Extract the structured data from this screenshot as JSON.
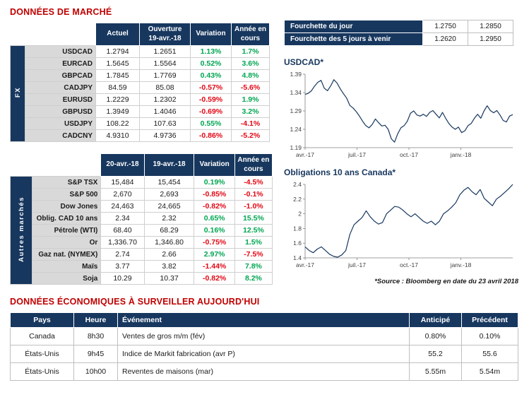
{
  "titles": {
    "market": "DONNÉES DE MARCHÉ",
    "econ": "DONNÉES ÉCONOMIQUES À SURVEILLER AUJOURD'HUI",
    "source_note": "*Source : Bloomberg en date du  23 avril 2018"
  },
  "colors": {
    "navy_header": "#17375E",
    "section_title_red": "#C00000",
    "positive_green": "#00A651",
    "negative_red": "#E30613",
    "row_label_gray": "#D9D9D9",
    "chart_line": "#17375E"
  },
  "range_table": {
    "rows": [
      {
        "label": "Fourchette du jour",
        "low": "1.2750",
        "high": "1.2850"
      },
      {
        "label": "Fourchette des 5 jours à venir",
        "low": "1.2620",
        "high": "1.2950"
      }
    ]
  },
  "fx_table": {
    "side_label": "FX",
    "headers": {
      "col1": "Actuel",
      "col2": "Ouverture\n19-avr.-18",
      "col3": "Variation",
      "col4": "Année en\ncours"
    },
    "rows": [
      {
        "label": "USDCAD",
        "v1": "1.2794",
        "v2": "1.2651",
        "variation": "1.13%",
        "ytd": "1.7%"
      },
      {
        "label": "EURCAD",
        "v1": "1.5645",
        "v2": "1.5564",
        "variation": "0.52%",
        "ytd": "3.6%"
      },
      {
        "label": "GBPCAD",
        "v1": "1.7845",
        "v2": "1.7769",
        "variation": "0.43%",
        "ytd": "4.8%"
      },
      {
        "label": "CADJPY",
        "v1": "84.59",
        "v2": "85.08",
        "variation": "-0.57%",
        "ytd": "-5.6%"
      },
      {
        "label": "EURUSD",
        "v1": "1.2229",
        "v2": "1.2302",
        "variation": "-0.59%",
        "ytd": "1.9%"
      },
      {
        "label": "GBPUSD",
        "v1": "1.3949",
        "v2": "1.4046",
        "variation": "-0.69%",
        "ytd": "3.2%"
      },
      {
        "label": "USDJPY",
        "v1": "108.22",
        "v2": "107.63",
        "variation": "0.55%",
        "ytd": "-4.1%"
      },
      {
        "label": "CADCNY",
        "v1": "4.9310",
        "v2": "4.9736",
        "variation": "-0.86%",
        "ytd": "-5.2%"
      }
    ]
  },
  "markets_table": {
    "side_label": "Autres marchés",
    "headers": {
      "col1": "20-avr.-18",
      "col2": "19-avr.-18",
      "col3": "Variation",
      "col4": "Année en\ncours"
    },
    "rows": [
      {
        "label": "S&P TSX",
        "v1": "15,484",
        "v2": "15,454",
        "variation": "0.19%",
        "ytd": "-4.5%"
      },
      {
        "label": "S&P 500",
        "v1": "2,670",
        "v2": "2,693",
        "variation": "-0.85%",
        "ytd": "-0.1%"
      },
      {
        "label": "Dow Jones",
        "v1": "24,463",
        "v2": "24,665",
        "variation": "-0.82%",
        "ytd": "-1.0%"
      },
      {
        "label": "Oblig. CAD 10 ans",
        "v1": "2.34",
        "v2": "2.32",
        "variation": "0.65%",
        "ytd": "15.5%"
      },
      {
        "label": "Pétrole (WTI)",
        "v1": "68.40",
        "v2": "68.29",
        "variation": "0.16%",
        "ytd": "12.5%"
      },
      {
        "label": "Or",
        "v1": "1,336.70",
        "v2": "1,346.80",
        "variation": "-0.75%",
        "ytd": "1.5%"
      },
      {
        "label": "Gaz nat. (NYMEX)",
        "v1": "2.74",
        "v2": "2.66",
        "variation": "2.97%",
        "ytd": "-7.5%"
      },
      {
        "label": "Maïs",
        "v1": "3.77",
        "v2": "3.82",
        "variation": "-1.44%",
        "ytd": "7.8%"
      },
      {
        "label": "Soja",
        "v1": "10.29",
        "v2": "10.37",
        "variation": "-0.82%",
        "ytd": "8.2%"
      }
    ]
  },
  "econ_table": {
    "headers": [
      "Pays",
      "Heure",
      "Événement",
      "Anticipé",
      "Précédent"
    ],
    "rows": [
      {
        "pays": "Canada",
        "heure": "8h30",
        "evenement": "Ventes de gros m/m (fév)",
        "anticipe": "0.80%",
        "precedent": "0.10%"
      },
      {
        "pays": "États-Unis",
        "heure": "9h45",
        "evenement": "Indice de Markit fabrication (avr P)",
        "anticipe": "55.2",
        "precedent": "55.6"
      },
      {
        "pays": "États-Unis",
        "heure": "10h00",
        "evenement": "Reventes de maisons (mar)",
        "anticipe": "5.55m",
        "precedent": "5.54m"
      }
    ]
  },
  "chart_data": [
    {
      "type": "line",
      "title": "USDCAD*",
      "xlabel": "",
      "ylabel": "",
      "ylim": [
        1.19,
        1.39
      ],
      "grid": false,
      "legend": "none",
      "yticks": [
        {
          "v": 1.19,
          "label": "1.19"
        },
        {
          "v": 1.24,
          "label": "1.24"
        },
        {
          "v": 1.29,
          "label": "1.29"
        },
        {
          "v": 1.34,
          "label": "1.34"
        },
        {
          "v": 1.39,
          "label": "1.39"
        }
      ],
      "xticks": [
        {
          "f": 0.0,
          "label": "avr.-17"
        },
        {
          "f": 0.25,
          "label": "juil.-17"
        },
        {
          "f": 0.5,
          "label": "oct.-17"
        },
        {
          "f": 0.75,
          "label": "janv.-18"
        }
      ],
      "values": [
        1.335,
        1.338,
        1.345,
        1.358,
        1.368,
        1.373,
        1.352,
        1.345,
        1.358,
        1.375,
        1.366,
        1.35,
        1.337,
        1.325,
        1.305,
        1.298,
        1.288,
        1.276,
        1.262,
        1.25,
        1.244,
        1.253,
        1.268,
        1.258,
        1.249,
        1.251,
        1.24,
        1.214,
        1.205,
        1.228,
        1.244,
        1.25,
        1.262,
        1.284,
        1.29,
        1.279,
        1.276,
        1.281,
        1.275,
        1.286,
        1.291,
        1.281,
        1.271,
        1.286,
        1.27,
        1.256,
        1.246,
        1.24,
        1.246,
        1.231,
        1.236,
        1.25,
        1.256,
        1.27,
        1.281,
        1.27,
        1.29,
        1.304,
        1.291,
        1.285,
        1.291,
        1.279,
        1.264,
        1.26,
        1.276,
        1.28
      ]
    },
    {
      "type": "line",
      "title": "Obligations 10 ans Canada*",
      "xlabel": "",
      "ylabel": "",
      "ylim": [
        1.4,
        2.4
      ],
      "grid": false,
      "legend": "none",
      "yticks": [
        {
          "v": 1.4,
          "label": "1.4"
        },
        {
          "v": 1.6,
          "label": "1.6"
        },
        {
          "v": 1.8,
          "label": "1.8"
        },
        {
          "v": 2.0,
          "label": "2"
        },
        {
          "v": 2.2,
          "label": "2.2"
        },
        {
          "v": 2.4,
          "label": "2.4"
        }
      ],
      "xticks": [
        {
          "f": 0.0,
          "label": "avr.-17"
        },
        {
          "f": 0.25,
          "label": "juil.-17"
        },
        {
          "f": 0.5,
          "label": "oct.-17"
        },
        {
          "f": 0.75,
          "label": "janv.-18"
        }
      ],
      "values": [
        1.55,
        1.5,
        1.47,
        1.52,
        1.55,
        1.5,
        1.45,
        1.42,
        1.41,
        1.44,
        1.5,
        1.72,
        1.85,
        1.9,
        1.95,
        2.04,
        1.96,
        1.9,
        1.86,
        1.88,
        2.0,
        2.05,
        2.1,
        2.09,
        2.05,
        2.0,
        1.96,
        2.0,
        1.95,
        1.9,
        1.87,
        1.9,
        1.85,
        1.9,
        2.0,
        2.04,
        2.09,
        2.15,
        2.26,
        2.32,
        2.36,
        2.3,
        2.26,
        2.33,
        2.21,
        2.16,
        2.11,
        2.2,
        2.24,
        2.29,
        2.34,
        2.4
      ]
    }
  ]
}
